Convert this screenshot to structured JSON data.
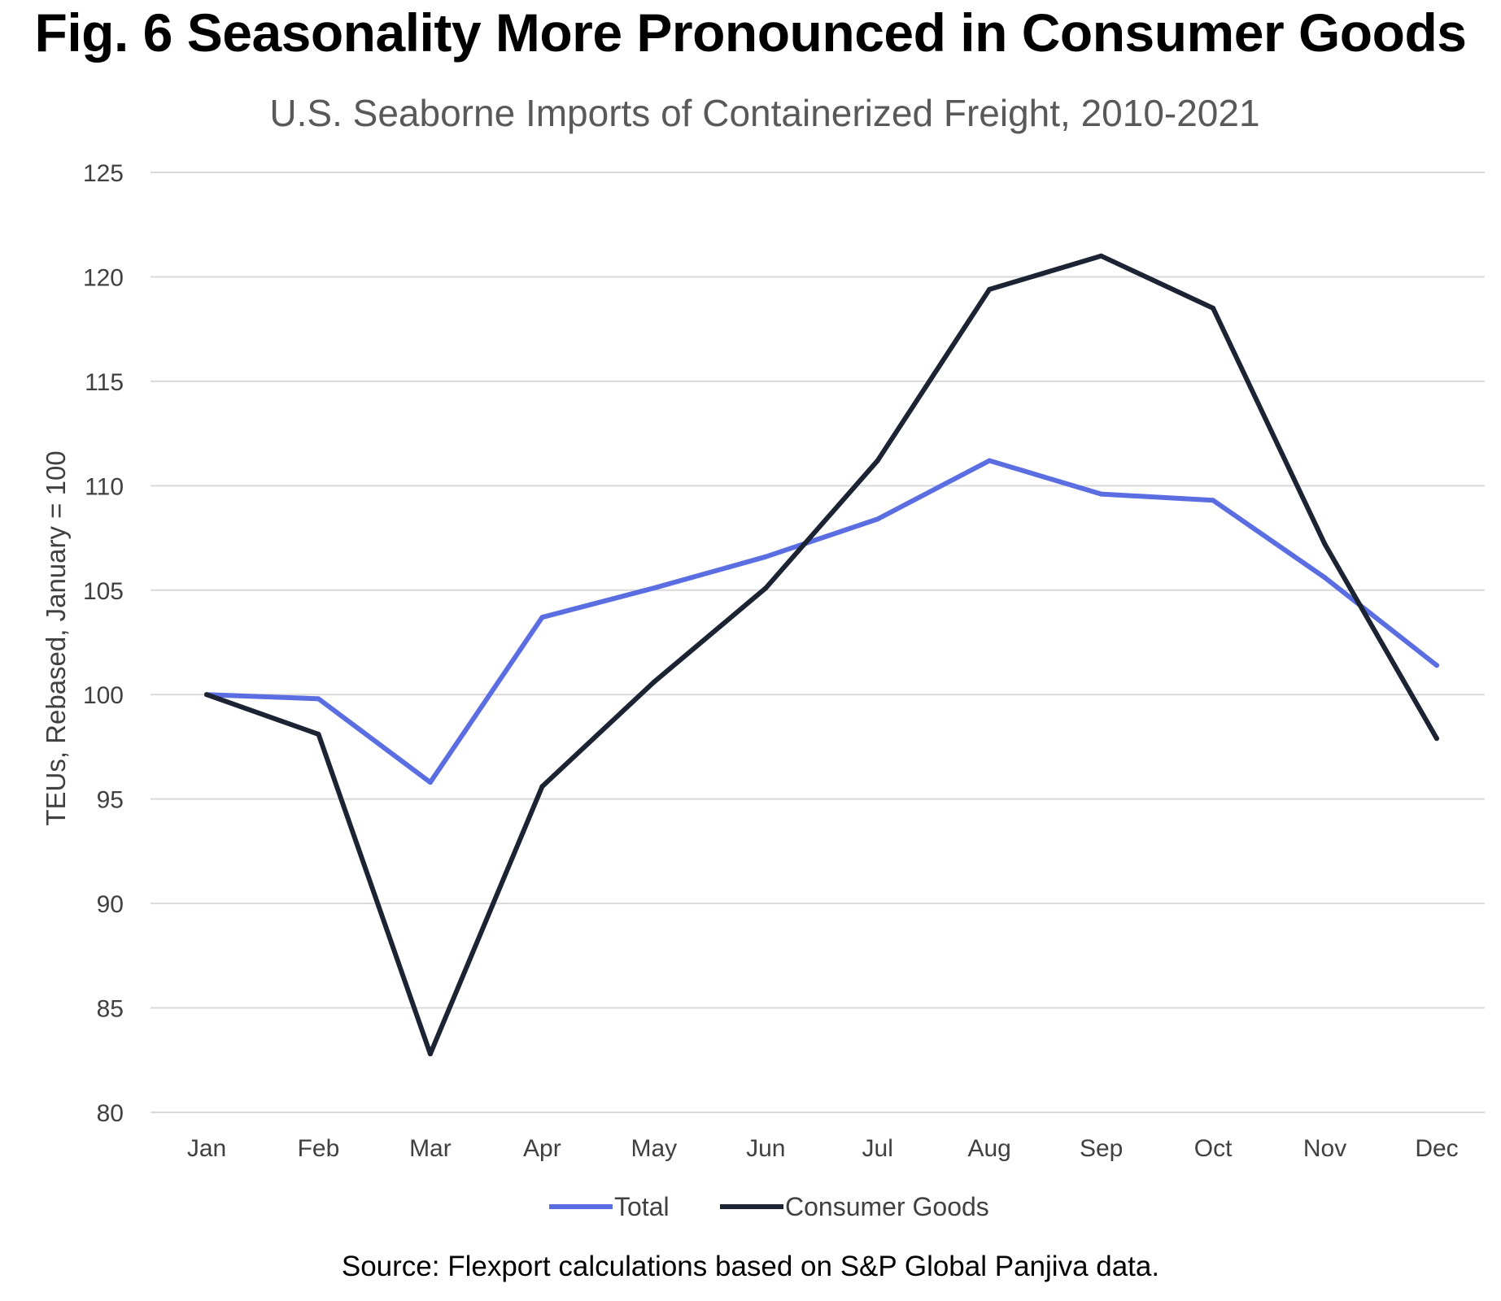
{
  "figure": {
    "title": "Fig. 6 Seasonality More Pronounced in Consumer Goods",
    "source": "Source: Flexport calculations based on S&P Global Panjiva data."
  },
  "chart_data": {
    "type": "line",
    "title": "U.S. Seaborne Imports of Containerized Freight, 2010-2021",
    "xlabel": "",
    "ylabel": "TEUs, Rebased, January = 100",
    "categories": [
      "Jan",
      "Feb",
      "Mar",
      "Apr",
      "May",
      "Jun",
      "Jul",
      "Aug",
      "Sep",
      "Oct",
      "Nov",
      "Dec"
    ],
    "ylim": [
      80,
      125
    ],
    "yticks": [
      80,
      85,
      90,
      95,
      100,
      105,
      110,
      115,
      120,
      125
    ],
    "grid": true,
    "legend_position": "bottom-center",
    "series": [
      {
        "name": "Total",
        "color": "#5b6ee1",
        "values": [
          100.0,
          99.8,
          95.8,
          103.7,
          105.1,
          106.6,
          108.4,
          111.2,
          109.6,
          109.3,
          105.6,
          101.4
        ]
      },
      {
        "name": "Consumer Goods",
        "color": "#1c2333",
        "values": [
          100.0,
          98.1,
          82.8,
          95.6,
          100.6,
          105.1,
          111.2,
          119.4,
          121.0,
          118.5,
          107.2,
          97.9
        ]
      }
    ]
  }
}
